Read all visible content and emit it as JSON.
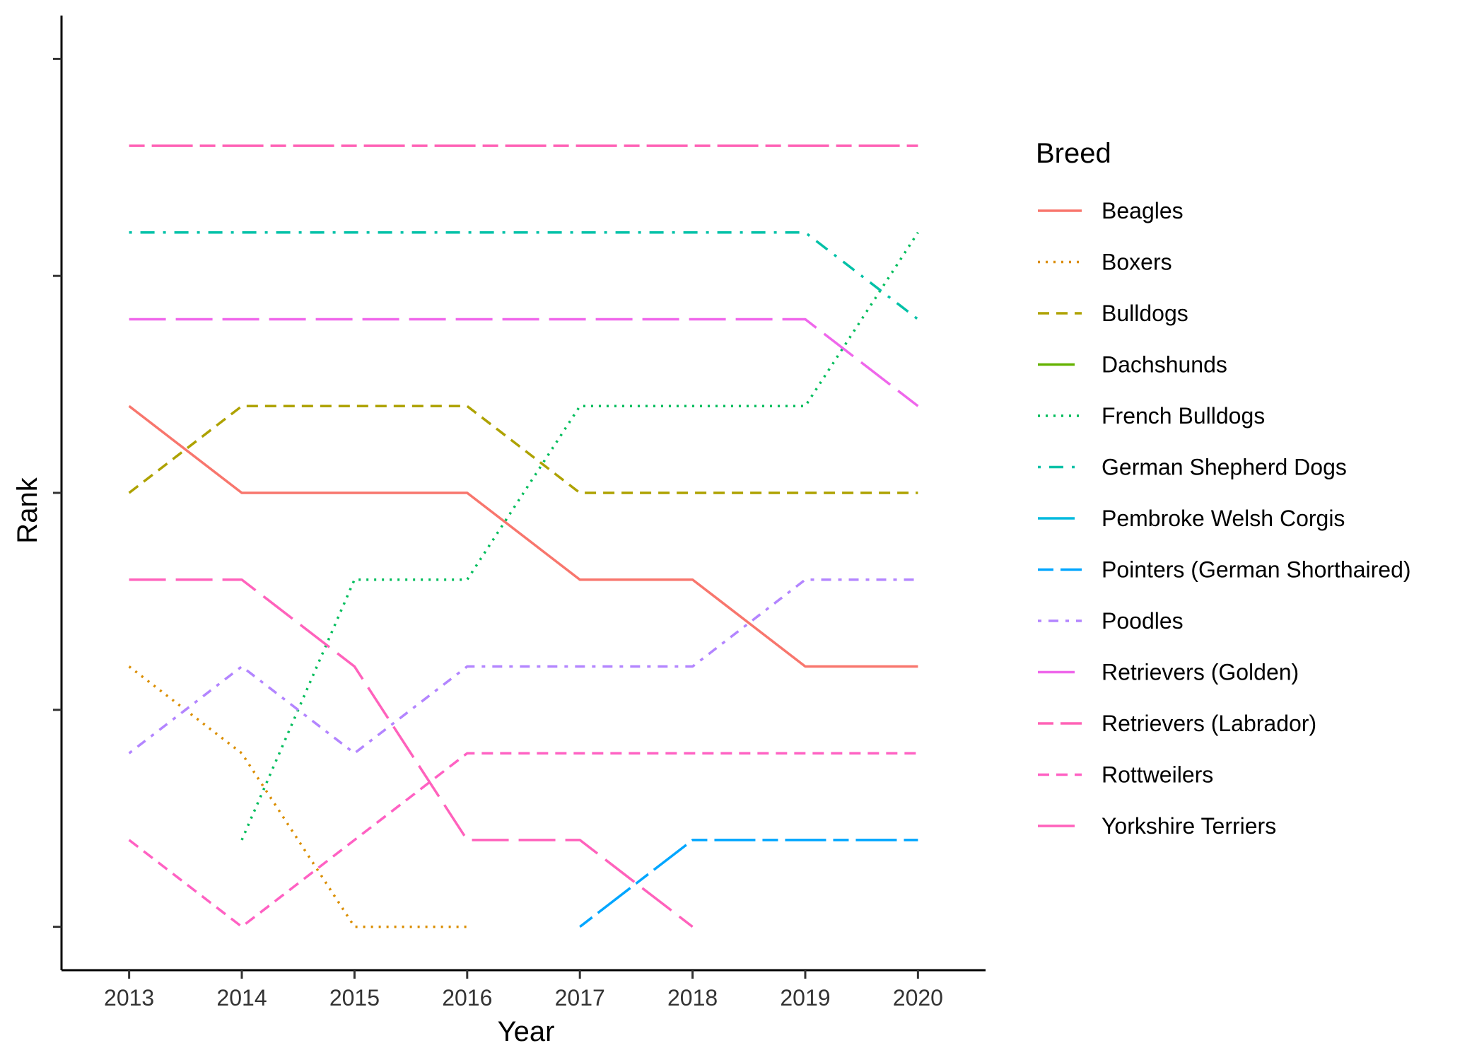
{
  "chart_data": {
    "type": "line",
    "xlabel": "Year",
    "ylabel": "Rank",
    "x": [
      2013,
      2014,
      2015,
      2016,
      2017,
      2018,
      2019,
      2020
    ],
    "y_ticks": [
      "",
      "",
      "",
      "",
      ""
    ],
    "y_tick_values": [
      20,
      15,
      10,
      5,
      0
    ],
    "ylim": [
      21,
      -1
    ],
    "grid": false,
    "legend": {
      "title": "Breed",
      "position": "right"
    },
    "series": [
      {
        "name": "Beagles",
        "color": "#F8766D",
        "dash": "solid",
        "x": [
          2013,
          2014,
          2015,
          2016,
          2017,
          2018,
          2019,
          2020
        ],
        "values": [
          8,
          10,
          10,
          10,
          12,
          12,
          14,
          14
        ]
      },
      {
        "name": "Boxers",
        "color": "#DB8E00",
        "dash": "dotted",
        "x": [
          2013,
          2014,
          2015,
          2016
        ],
        "values": [
          14,
          16,
          20,
          20
        ]
      },
      {
        "name": "Bulldogs",
        "color": "#AEA200",
        "dash": "dashed",
        "x": [
          2013,
          2014,
          2015,
          2016,
          2017,
          2018,
          2019,
          2020
        ],
        "values": [
          10,
          8,
          8,
          8,
          10,
          10,
          10,
          10
        ]
      },
      {
        "name": "Dachshunds",
        "color": "#64B200",
        "dash": "longdash",
        "x": [],
        "values": []
      },
      {
        "name": "French Bulldogs",
        "color": "#00BD5C",
        "dash": "dotted",
        "x": [
          2014,
          2015,
          2016,
          2017,
          2018,
          2019,
          2020
        ],
        "values": [
          18,
          12,
          12,
          8,
          8,
          8,
          4
        ]
      },
      {
        "name": "German Shepherd Dogs",
        "color": "#00C1A7",
        "dash": "dotdash",
        "x": [
          2013,
          2014,
          2015,
          2016,
          2017,
          2018,
          2019,
          2020
        ],
        "values": [
          4,
          4,
          4,
          4,
          4,
          4,
          4,
          6
        ]
      },
      {
        "name": "Pembroke Welsh Corgis",
        "color": "#00BADE",
        "dash": "longdash",
        "x": [],
        "values": []
      },
      {
        "name": "Pointers (German Shorthaired)",
        "color": "#00A6FF",
        "dash": "twodash",
        "x": [
          2017,
          2018,
          2019,
          2020
        ],
        "values": [
          20,
          18,
          18,
          18
        ]
      },
      {
        "name": "Poodles",
        "color": "#B385FF",
        "dash": "dotdash2",
        "x": [
          2013,
          2014,
          2015,
          2016,
          2017,
          2018,
          2019,
          2020
        ],
        "values": [
          16,
          14,
          16,
          14,
          14,
          14,
          12,
          12
        ]
      },
      {
        "name": "Retrievers (Golden)",
        "color": "#EF67EB",
        "dash": "longdash",
        "x": [
          2013,
          2014,
          2015,
          2016,
          2017,
          2018,
          2019,
          2020
        ],
        "values": [
          6,
          6,
          6,
          6,
          6,
          6,
          6,
          8
        ]
      },
      {
        "name": "Retrievers (Labrador)",
        "color": "#FF63B6",
        "dash": "twodash",
        "x": [
          2013,
          2014,
          2015,
          2016,
          2017,
          2018,
          2019,
          2020
        ],
        "values": [
          2,
          2,
          2,
          2,
          2,
          2,
          2,
          2
        ]
      },
      {
        "name": "Rottweilers",
        "color": "#FF61C3",
        "dash": "dashed",
        "x": [
          2013,
          2014,
          2015,
          2016,
          2017,
          2018,
          2019,
          2020
        ],
        "values": [
          18,
          20,
          18,
          16,
          16,
          16,
          16,
          16
        ]
      },
      {
        "name": "Yorkshire Terriers",
        "color": "#FF62BC",
        "dash": "longdash",
        "x": [
          2013,
          2014,
          2015,
          2016,
          2017,
          2018
        ],
        "values": [
          12,
          12,
          14,
          18,
          18,
          20
        ]
      }
    ]
  }
}
